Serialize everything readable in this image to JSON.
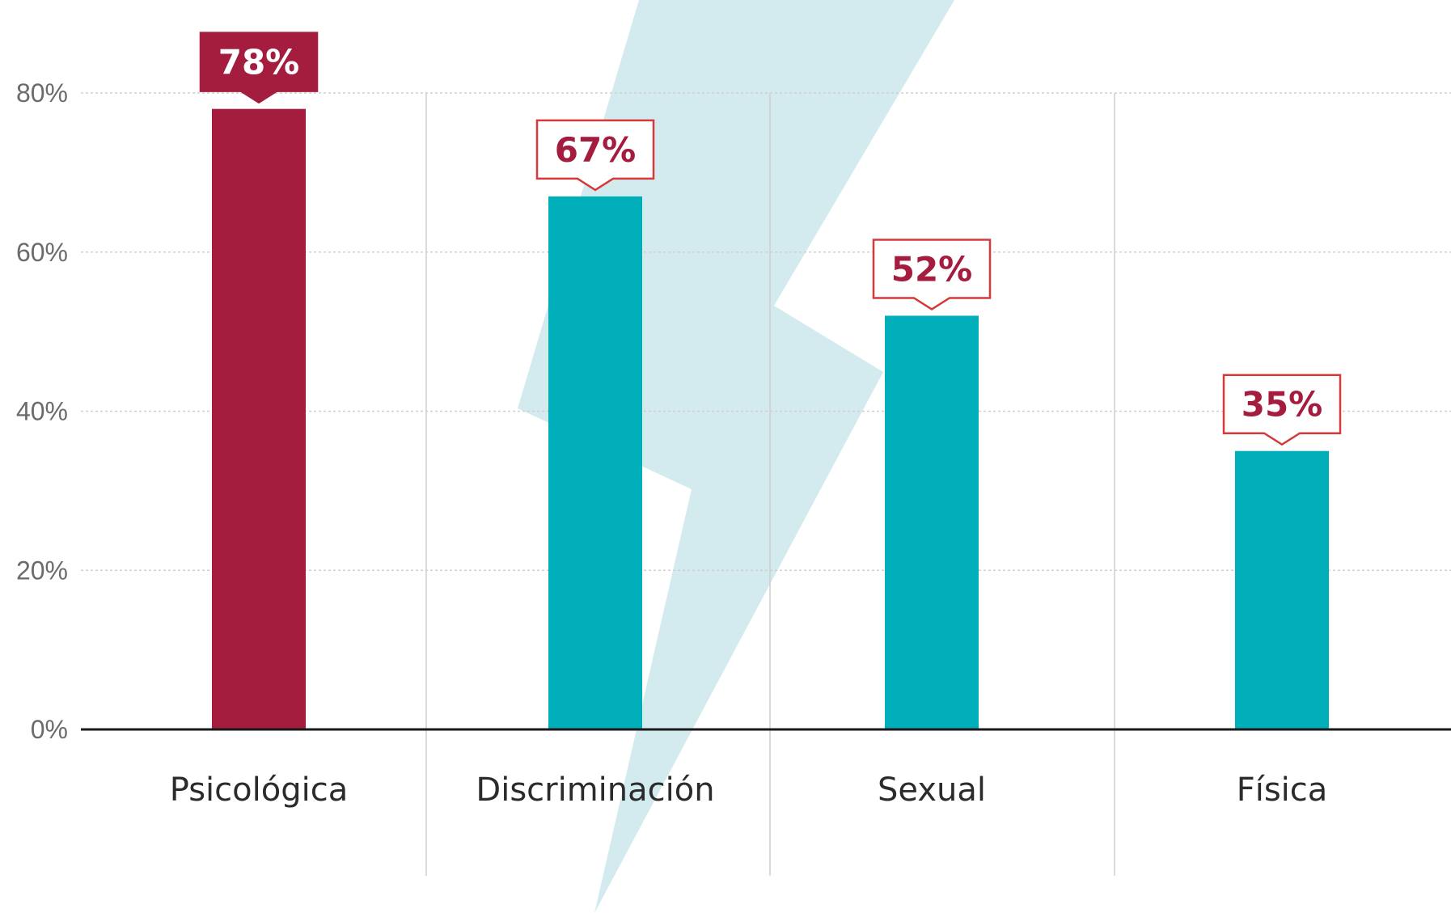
{
  "chart_data": {
    "type": "bar",
    "categories": [
      "Psicológica",
      "Discriminación",
      "Sexual",
      "Física"
    ],
    "values": [
      78,
      67,
      52,
      35
    ],
    "value_labels": [
      "78%",
      "67%",
      "52%",
      "35%"
    ],
    "highlighted_index": 0,
    "ylim": [
      0,
      80
    ],
    "yticks": [
      0,
      20,
      40,
      60,
      80
    ],
    "ytick_labels": [
      "0%",
      "20%",
      "40%",
      "60%",
      "80%"
    ],
    "grid": true,
    "title": "",
    "xlabel": "",
    "ylabel": ""
  },
  "colors": {
    "highlight": "#a41c3e",
    "bar": "#00aeb9",
    "bolt": "#d3ebee",
    "grid": "#cfcfcf",
    "axis": "#1a1a1a",
    "label_border": "#d43a3a",
    "label_text": "#a41c3e"
  },
  "decoration": {
    "background_icon": "lightning-bolt-icon"
  }
}
